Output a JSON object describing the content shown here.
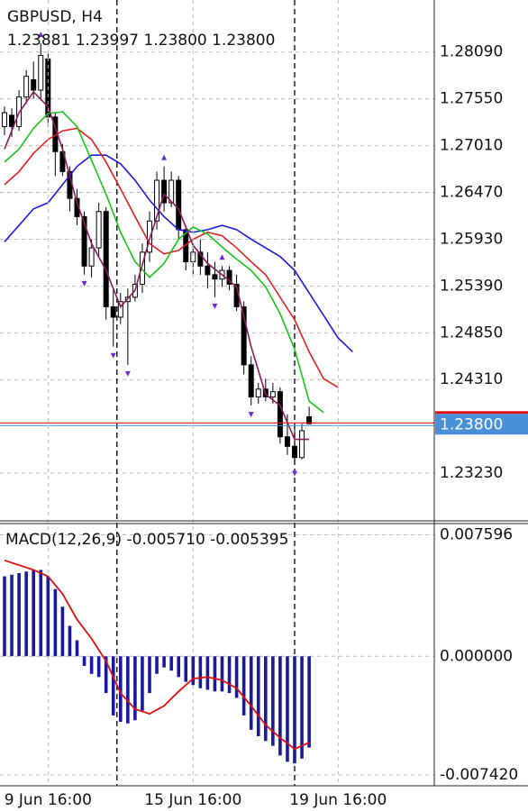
{
  "chart_data": [
    {
      "type": "candlestick",
      "title": "GBPUSD, H4",
      "subtitle": "1.23881 1.23997 1.23800 1.23800",
      "open": [
        1.2723,
        1.2736,
        1.2723,
        1.2757,
        1.2777,
        1.2765,
        1.2801,
        1.2734,
        1.2694,
        1.2671,
        1.264,
        1.2619,
        1.2562,
        1.2583,
        1.2625,
        1.2515,
        1.2503,
        1.2521,
        1.2526,
        1.2541,
        1.2578,
        1.2614,
        1.2661,
        1.2635,
        1.2661,
        1.2604,
        1.2567,
        1.2578,
        1.2562,
        1.2552,
        1.2547,
        1.2557,
        1.2541,
        1.2515,
        1.2448,
        1.2411,
        1.242,
        1.2411,
        1.2417,
        1.2365,
        1.2354,
        1.2341,
        1.23881
      ],
      "high": [
        1.2746,
        1.2744,
        1.2765,
        1.2788,
        1.2798,
        1.2819,
        1.2807,
        1.2739,
        1.2703,
        1.2677,
        1.2651,
        1.2625,
        1.2593,
        1.2635,
        1.263,
        1.2536,
        1.2531,
        1.2536,
        1.2552,
        1.2588,
        1.2625,
        1.2671,
        1.2677,
        1.2671,
        1.2666,
        1.2609,
        1.2588,
        1.2593,
        1.2578,
        1.2567,
        1.2562,
        1.2562,
        1.2552,
        1.2521,
        1.2458,
        1.2427,
        1.2432,
        1.2427,
        1.2422,
        1.2391,
        1.2375,
        1.238,
        1.23997
      ],
      "low": [
        1.2713,
        1.2711,
        1.2718,
        1.2749,
        1.2755,
        1.2753,
        1.2723,
        1.2666,
        1.2666,
        1.2625,
        1.2609,
        1.2552,
        1.2549,
        1.2573,
        1.25,
        1.2469,
        1.2495,
        1.2448,
        1.2521,
        1.2531,
        1.2567,
        1.2604,
        1.2625,
        1.263,
        1.2593,
        1.2557,
        1.2552,
        1.2552,
        1.2536,
        1.2526,
        1.2538,
        1.2534,
        1.251,
        1.2437,
        1.2401,
        1.2403,
        1.2406,
        1.2403,
        1.2357,
        1.2344,
        1.2333,
        1.2339,
        1.238
      ],
      "close": [
        1.2739,
        1.2723,
        1.2757,
        1.2781,
        1.2765,
        1.2805,
        1.2734,
        1.2694,
        1.2671,
        1.264,
        1.2619,
        1.2562,
        1.2583,
        1.2625,
        1.2515,
        1.2503,
        1.2521,
        1.2526,
        1.2541,
        1.2578,
        1.2614,
        1.2661,
        1.2635,
        1.2661,
        1.2604,
        1.2567,
        1.2578,
        1.2562,
        1.2552,
        1.2547,
        1.2557,
        1.2541,
        1.2515,
        1.2448,
        1.2411,
        1.242,
        1.2411,
        1.2417,
        1.2365,
        1.2354,
        1.2341,
        1.2372,
        1.238
      ],
      "up_color": "#ffffff",
      "down_color": "#000000",
      "series": [
        {
          "color": "#1a1adc",
          "x": [
            0,
            2,
            4,
            6,
            8,
            10,
            12,
            14,
            16,
            18,
            20,
            22,
            24,
            26,
            28,
            30,
            32,
            34,
            36,
            38,
            40,
            42,
            44,
            46,
            48
          ],
          "values": [
            1.259,
            1.2609,
            1.2628,
            1.2635,
            1.2656,
            1.2677,
            1.269,
            1.269,
            1.268,
            1.2661,
            1.2638,
            1.2619,
            1.2604,
            1.2601,
            1.2604,
            1.2609,
            1.2604,
            1.2593,
            1.2583,
            1.2573,
            1.2557,
            1.2531,
            1.2505,
            1.2479,
            1.2463
          ]
        },
        {
          "color": "#e02020",
          "x": [
            0,
            2,
            4,
            6,
            8,
            10,
            12,
            14,
            16,
            18,
            20,
            22,
            24,
            26,
            28,
            30,
            32,
            34,
            36,
            38,
            40,
            42,
            44,
            46
          ],
          "values": [
            1.2656,
            1.2671,
            1.2692,
            1.2708,
            1.2718,
            1.2721,
            1.2708,
            1.2682,
            1.2651,
            1.2619,
            1.2588,
            1.2576,
            1.258,
            1.2593,
            1.2601,
            1.2597,
            1.2583,
            1.2567,
            1.2552,
            1.2526,
            1.25,
            1.2463,
            1.2432,
            1.2422
          ]
        },
        {
          "color": "#18c418",
          "x": [
            0,
            2,
            4,
            6,
            8,
            10,
            12,
            14,
            16,
            18,
            20,
            22,
            24,
            26,
            28,
            30,
            32,
            34,
            36,
            38,
            40,
            42,
            44
          ],
          "values": [
            1.2682,
            1.2697,
            1.2721,
            1.2738,
            1.274,
            1.2723,
            1.2684,
            1.2645,
            1.2601,
            1.2567,
            1.2549,
            1.2565,
            1.2593,
            1.2607,
            1.2599,
            1.2584,
            1.257,
            1.2557,
            1.2538,
            1.2507,
            1.2466,
            1.2406,
            1.2393
          ]
        },
        {
          "color": "#8b1a5a",
          "x": [
            0,
            2,
            4,
            6,
            8,
            10,
            12,
            14,
            16,
            18,
            20,
            22,
            24,
            26,
            28,
            30,
            32,
            34,
            36,
            38,
            40,
            42
          ],
          "values": [
            1.2697,
            1.2739,
            1.2763,
            1.2746,
            1.2697,
            1.2635,
            1.2588,
            1.2557,
            1.2515,
            1.2534,
            1.2593,
            1.2645,
            1.2628,
            1.2586,
            1.2565,
            1.2552,
            1.2538,
            1.2469,
            1.2414,
            1.2401,
            1.2362,
            1.2362
          ]
        }
      ],
      "fractals_up": [
        5,
        22,
        30
      ],
      "fractals_down": [
        11,
        15,
        17,
        29,
        34,
        40
      ],
      "fractal_color": "#6a2ccf",
      "ask": 1.2381,
      "ask_color": "#e01010",
      "bid": {
        "value": 1.238,
        "label": "1.23800"
      },
      "bid_color": "#4a90d9",
      "separators": [
        15.5,
        40
      ],
      "ylim": [
        1.2268,
        1.2869
      ],
      "yticks": [
        {
          "value": 1.2809,
          "label": "1.28090"
        },
        {
          "value": 1.2755,
          "label": "1.27550"
        },
        {
          "value": 1.2701,
          "label": "1.27010"
        },
        {
          "value": 1.2647,
          "label": "1.26470"
        },
        {
          "value": 1.2593,
          "label": "1.25930"
        },
        {
          "value": 1.2539,
          "label": "1.25390"
        },
        {
          "value": 1.2485,
          "label": "1.24850"
        },
        {
          "value": 1.2431,
          "label": "1.24310"
        },
        {
          "value": 1.2323,
          "label": "1.23230"
        }
      ],
      "grid": true
    },
    {
      "type": "macd",
      "title": "MACD(12,26,9) -0.005710 -0.005395",
      "histogram": {
        "color": "#1a1a9c",
        "values": [
          0.005,
          0.0051,
          0.0052,
          0.0053,
          0.0054,
          0.0054,
          0.005,
          0.0042,
          0.0031,
          0.0019,
          0.001,
          -0.0006,
          -0.0011,
          -0.0013,
          -0.0023,
          -0.0037,
          -0.0041,
          -0.0042,
          -0.004,
          -0.0034,
          -0.0023,
          -0.0011,
          -0.0007,
          -0.0009,
          -0.0013,
          -0.0016,
          -0.0018,
          -0.002,
          -0.0021,
          -0.0022,
          -0.0022,
          -0.0023,
          -0.0026,
          -0.0037,
          -0.0046,
          -0.005,
          -0.0053,
          -0.0056,
          -0.0062,
          -0.0066,
          -0.0067,
          -0.0064,
          -0.00571
        ]
      },
      "signal": {
        "color": "#e01010",
        "x": [
          0,
          2,
          4,
          6,
          8,
          10,
          12,
          14,
          16,
          18,
          20,
          22,
          24,
          26,
          28,
          30,
          32,
          34,
          36,
          38,
          40,
          42
        ],
        "values": [
          0.006,
          0.0057,
          0.0054,
          0.005,
          0.0039,
          0.0023,
          0.0011,
          -0.0003,
          -0.0023,
          -0.0033,
          -0.0036,
          -0.0031,
          -0.0022,
          -0.0014,
          -0.0013,
          -0.0015,
          -0.002,
          -0.0031,
          -0.0043,
          -0.0051,
          -0.0058,
          -0.005395
        ]
      },
      "ylim": [
        -0.0081,
        0.0083
      ],
      "yticks": [
        0.007596,
        {
          "value": 0,
          "label": "0.000000"
        },
        {
          "value": -0.00742,
          "label": "-0.007420"
        }
      ],
      "xticks": [
        {
          "value": 6,
          "label": "9 Jun 16:00"
        },
        {
          "value": 26,
          "label": "15 Jun 16:00"
        },
        {
          "value": 46,
          "label": "19 Jun 16:00"
        }
      ],
      "grid": true
    }
  ]
}
